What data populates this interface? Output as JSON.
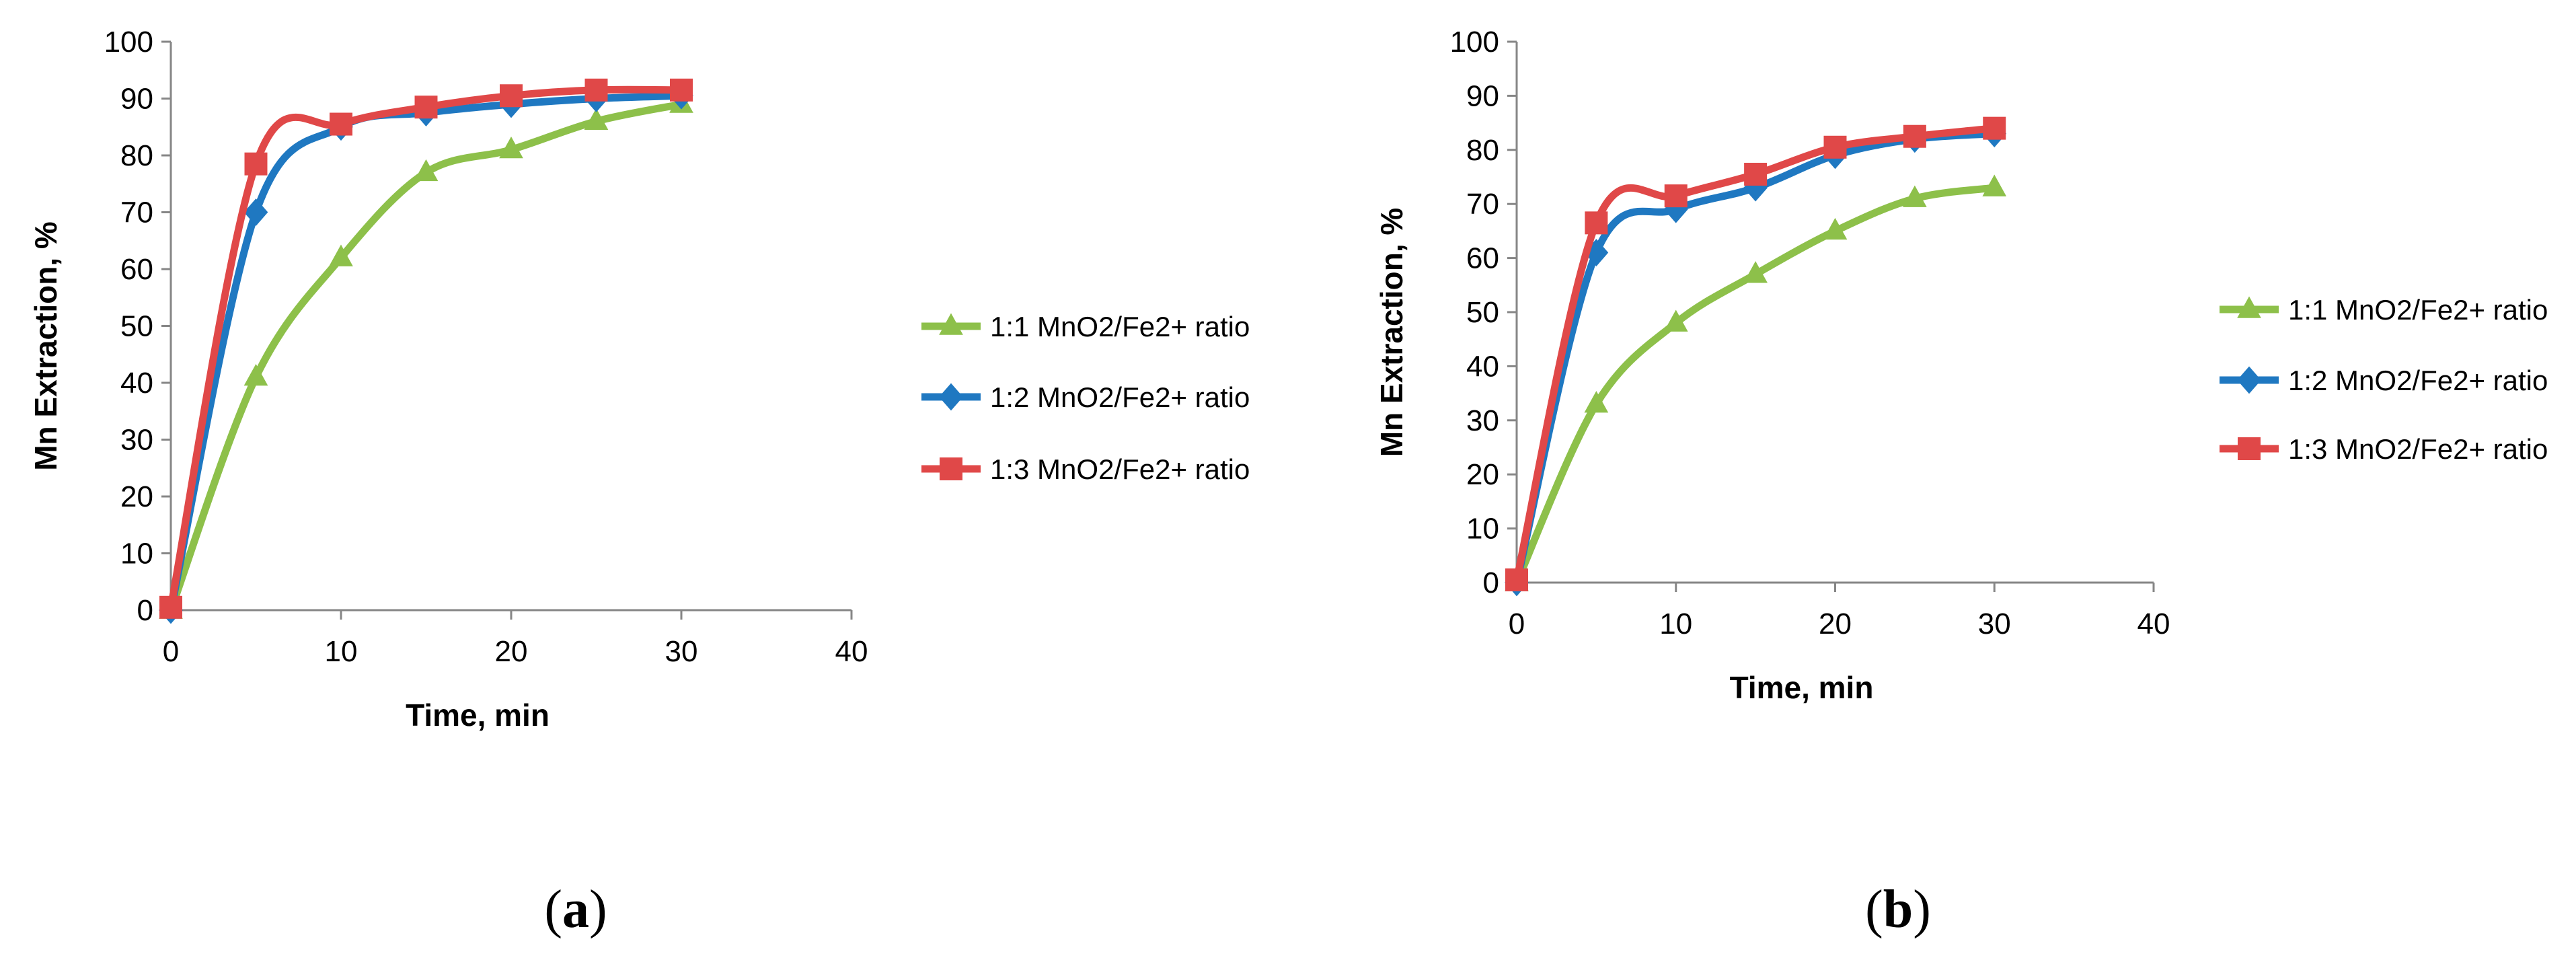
{
  "chart_data": [
    {
      "type": "line",
      "panel_label": "a",
      "title": "",
      "xlabel": "Time, min",
      "ylabel": "Mn Extraction, %",
      "xlim": [
        0,
        40
      ],
      "ylim": [
        0,
        100
      ],
      "xticks": [
        0,
        10,
        20,
        30,
        40
      ],
      "yticks": [
        0,
        10,
        20,
        30,
        40,
        50,
        60,
        70,
        80,
        90,
        100
      ],
      "grid": false,
      "legend_position": "right",
      "series": [
        {
          "name": "1:1 MnO2/Fe2+ ratio",
          "color": "#8DC04A",
          "marker": "triangle",
          "x": [
            0,
            5,
            10,
            15,
            20,
            25,
            30
          ],
          "values": [
            0,
            41,
            62,
            77,
            81,
            86,
            89
          ]
        },
        {
          "name": "1:2 MnO2/Fe2+ ratio",
          "color": "#1F78C1",
          "marker": "diamond",
          "x": [
            0,
            5,
            10,
            15,
            20,
            25,
            30
          ],
          "values": [
            0,
            70,
            85,
            87.5,
            89,
            90,
            90.5
          ]
        },
        {
          "name": "1:3 MnO2/Fe2+ ratio",
          "color": "#E04848",
          "marker": "square",
          "x": [
            0,
            5,
            10,
            15,
            20,
            25,
            30
          ],
          "values": [
            0.5,
            78.5,
            85.5,
            88.5,
            90.5,
            91.5,
            91.5
          ]
        }
      ]
    },
    {
      "type": "line",
      "panel_label": "b",
      "title": "",
      "xlabel": "Time, min",
      "ylabel": "Mn Extraction, %",
      "xlim": [
        0,
        40
      ],
      "ylim": [
        0,
        100
      ],
      "xticks": [
        0,
        10,
        20,
        30,
        40
      ],
      "yticks": [
        0,
        10,
        20,
        30,
        40,
        50,
        60,
        70,
        80,
        90,
        100
      ],
      "grid": false,
      "legend_position": "right",
      "series": [
        {
          "name": "1:1 MnO2/Fe2+ ratio",
          "color": "#8DC04A",
          "marker": "triangle",
          "x": [
            0,
            5,
            10,
            15,
            20,
            25,
            30
          ],
          "values": [
            0,
            33,
            48,
            57,
            65,
            71,
            73
          ]
        },
        {
          "name": "1:2 MnO2/Fe2+ ratio",
          "color": "#1F78C1",
          "marker": "diamond",
          "x": [
            0,
            5,
            10,
            15,
            20,
            25,
            30
          ],
          "values": [
            0,
            61,
            69,
            73,
            79,
            82,
            83
          ]
        },
        {
          "name": "1:3 MnO2/Fe2+ ratio",
          "color": "#E04848",
          "marker": "square",
          "x": [
            0,
            5,
            10,
            15,
            20,
            25,
            30
          ],
          "values": [
            0.5,
            66.5,
            71.5,
            75.5,
            80.5,
            82.5,
            84
          ]
        }
      ]
    }
  ]
}
